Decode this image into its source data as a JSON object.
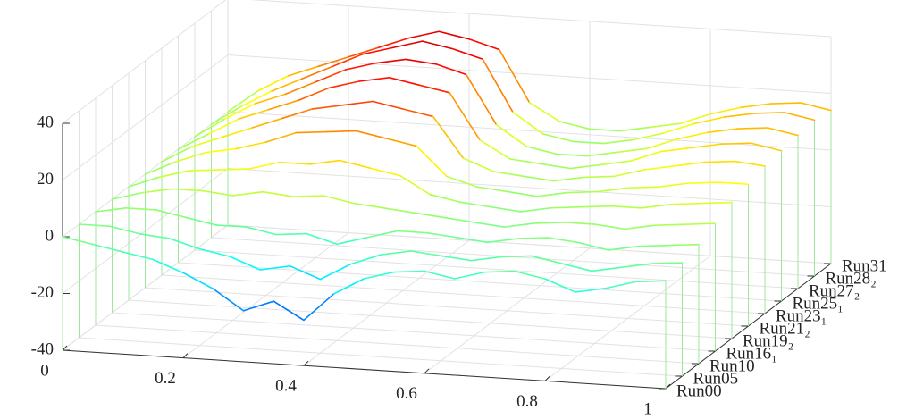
{
  "chart_data": {
    "type": "waterfall",
    "colormap": "jet",
    "grid": true,
    "x": [
      0,
      0.05,
      0.1,
      0.15,
      0.2,
      0.25,
      0.3,
      0.35,
      0.4,
      0.45,
      0.5,
      0.55,
      0.6,
      0.65,
      0.7,
      0.75,
      0.8,
      0.85,
      0.9,
      0.95,
      1
    ],
    "xlim": [
      0,
      1
    ],
    "xticks": [
      0,
      0.2,
      0.4,
      0.6,
      0.8,
      1
    ],
    "zlim": [
      -40,
      40
    ],
    "zticks": [
      -40,
      -20,
      0,
      20,
      40
    ],
    "series": [
      {
        "name": "Run00",
        "values": [
          0,
          -2,
          -4,
          -6,
          -10,
          -15,
          -22,
          -18,
          -24,
          -14,
          -8,
          -5,
          -4,
          -6,
          -3,
          -2,
          -4,
          -8,
          -6,
          -3,
          -2
        ]
      },
      {
        "name": "Run05",
        "values": [
          0,
          0,
          -2,
          -3,
          -6,
          -8,
          -12,
          -10,
          -14,
          -8,
          -4,
          -2,
          -3,
          -4,
          -2,
          -1,
          -3,
          -5,
          -3,
          -1,
          0
        ]
      },
      {
        "name": "Run10",
        "values": [
          0,
          2,
          2,
          0,
          -2,
          -2,
          -4,
          -3,
          -6,
          -3,
          0,
          0,
          -1,
          -2,
          0,
          1,
          0,
          -2,
          0,
          1,
          2
        ]
      },
      {
        "name": "Run16₁",
        "values": [
          0,
          3,
          5,
          5,
          4,
          6,
          5,
          6,
          4,
          3,
          2,
          1,
          0,
          -1,
          1,
          2,
          2,
          1,
          3,
          4,
          5
        ]
      },
      {
        "name": "Run19₂",
        "values": [
          0,
          4,
          7,
          8,
          9,
          12,
          12,
          14,
          12,
          10,
          4,
          2,
          1,
          0,
          2,
          3,
          4,
          4,
          6,
          7,
          8
        ]
      },
      {
        "name": "Run21₂",
        "values": [
          0,
          5,
          9,
          11,
          14,
          18,
          19,
          20,
          18,
          16,
          6,
          3,
          2,
          1,
          3,
          4,
          6,
          7,
          9,
          10,
          10
        ]
      },
      {
        "name": "Run23₁",
        "values": [
          0,
          6,
          10,
          14,
          18,
          22,
          24,
          26,
          24,
          22,
          8,
          4,
          3,
          2,
          4,
          5,
          8,
          10,
          12,
          13,
          12
        ]
      },
      {
        "name": "Run25₁",
        "values": [
          0,
          6,
          12,
          16,
          20,
          25,
          28,
          30,
          28,
          26,
          10,
          4,
          3,
          2,
          4,
          6,
          10,
          12,
          14,
          15,
          13
        ]
      },
      {
        "name": "Run27₂",
        "values": [
          0,
          7,
          13,
          17,
          22,
          27,
          30,
          32,
          31,
          28,
          11,
          4,
          2,
          2,
          4,
          6,
          10,
          13,
          15,
          16,
          14
        ]
      },
      {
        "name": "Run28₂",
        "values": [
          0,
          7,
          13,
          18,
          23,
          28,
          31,
          34,
          32,
          29,
          11,
          4,
          2,
          2,
          4,
          7,
          11,
          14,
          16,
          17,
          15
        ]
      },
      {
        "name": "Run31",
        "values": [
          0,
          8,
          14,
          18,
          22,
          26,
          30,
          33,
          31,
          28,
          10,
          4,
          2,
          2,
          4,
          6,
          10,
          13,
          15,
          16,
          14
        ]
      }
    ]
  }
}
